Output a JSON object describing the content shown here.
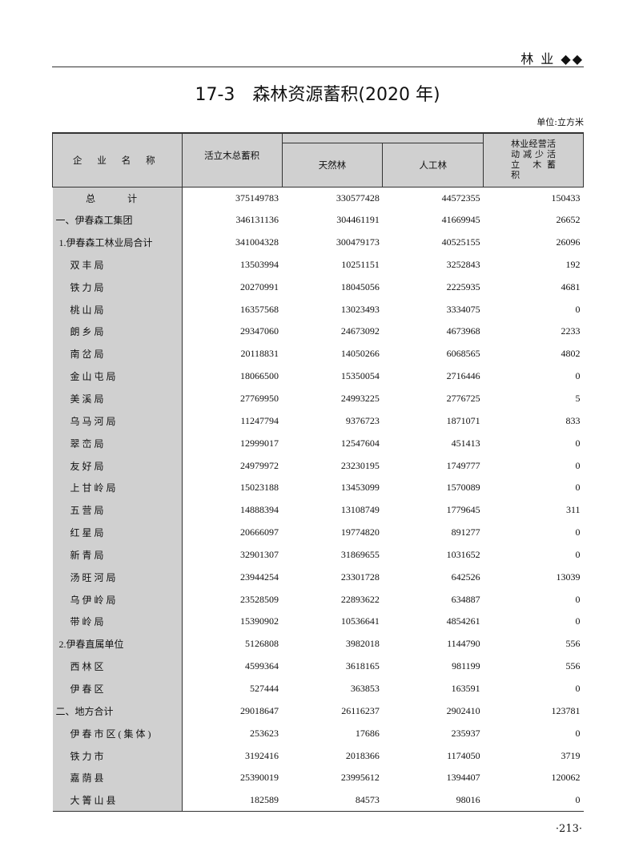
{
  "header": {
    "section": "林 业",
    "mark": "◆◆"
  },
  "title": "17-3　森林资源蓄积(2020 年)",
  "unit": "单位:立方米",
  "columns": {
    "name": "企 业 名 称",
    "total": "活立木总蓄积",
    "natural": "天然林",
    "planted": "人工林",
    "reduction": "林业经营活动减少活 立 木蓄　　积"
  },
  "rows": [
    {
      "name": "总　计",
      "v": [
        "375149783",
        "330577428",
        "44572355",
        "150433"
      ]
    },
    {
      "name": "一、伊春森工集团",
      "v": [
        "346131136",
        "304461191",
        "41669945",
        "26652"
      ]
    },
    {
      "name": "1.伊春森工林业局合计",
      "v": [
        "341004328",
        "300479173",
        "40525155",
        "26096"
      ]
    },
    {
      "name": "双丰局",
      "v": [
        "13503994",
        "10251151",
        "3252843",
        "192"
      ]
    },
    {
      "name": "铁力局",
      "v": [
        "20270991",
        "18045056",
        "2225935",
        "4681"
      ]
    },
    {
      "name": "桃山局",
      "v": [
        "16357568",
        "13023493",
        "3334075",
        "0"
      ]
    },
    {
      "name": "朗乡局",
      "v": [
        "29347060",
        "24673092",
        "4673968",
        "2233"
      ]
    },
    {
      "name": "南岔局",
      "v": [
        "20118831",
        "14050266",
        "6068565",
        "4802"
      ]
    },
    {
      "name": "金山屯局",
      "v": [
        "18066500",
        "15350054",
        "2716446",
        "0"
      ]
    },
    {
      "name": "美溪局",
      "v": [
        "27769950",
        "24993225",
        "2776725",
        "5"
      ]
    },
    {
      "name": "乌马河局",
      "v": [
        "11247794",
        "9376723",
        "1871071",
        "833"
      ]
    },
    {
      "name": "翠峦局",
      "v": [
        "12999017",
        "12547604",
        "451413",
        "0"
      ]
    },
    {
      "name": "友好局",
      "v": [
        "24979972",
        "23230195",
        "1749777",
        "0"
      ]
    },
    {
      "name": "上甘岭局",
      "v": [
        "15023188",
        "13453099",
        "1570089",
        "0"
      ]
    },
    {
      "name": "五营局",
      "v": [
        "14888394",
        "13108749",
        "1779645",
        "311"
      ]
    },
    {
      "name": "红星局",
      "v": [
        "20666097",
        "19774820",
        "891277",
        "0"
      ]
    },
    {
      "name": "新青局",
      "v": [
        "32901307",
        "31869655",
        "1031652",
        "0"
      ]
    },
    {
      "name": "汤旺河局",
      "v": [
        "23944254",
        "23301728",
        "642526",
        "13039"
      ]
    },
    {
      "name": "乌伊岭局",
      "v": [
        "23528509",
        "22893622",
        "634887",
        "0"
      ]
    },
    {
      "name": "带岭局",
      "v": [
        "15390902",
        "10536641",
        "4854261",
        "0"
      ]
    },
    {
      "name": "2.伊春直属单位",
      "v": [
        "5126808",
        "3982018",
        "1144790",
        "556"
      ]
    },
    {
      "name": "西林区",
      "v": [
        "4599364",
        "3618165",
        "981199",
        "556"
      ]
    },
    {
      "name": "伊春区",
      "v": [
        "527444",
        "363853",
        "163591",
        "0"
      ]
    },
    {
      "name": "二、地方合计",
      "v": [
        "29018647",
        "26116237",
        "2902410",
        "123781"
      ]
    },
    {
      "name": "伊春市区(集体)",
      "v": [
        "253623",
        "17686",
        "235937",
        "0"
      ]
    },
    {
      "name": "铁力市",
      "v": [
        "3192416",
        "2018366",
        "1174050",
        "3719"
      ]
    },
    {
      "name": "嘉荫县",
      "v": [
        "25390019",
        "23995612",
        "1394407",
        "120062"
      ]
    },
    {
      "name": "大箐山县",
      "v": [
        "182589",
        "84573",
        "98016",
        "0"
      ]
    }
  ],
  "page_number": "·213·"
}
